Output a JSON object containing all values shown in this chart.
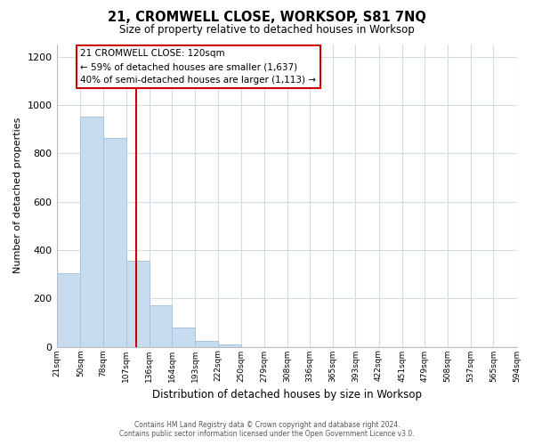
{
  "title": "21, CROMWELL CLOSE, WORKSOP, S81 7NQ",
  "subtitle": "Size of property relative to detached houses in Worksop",
  "xlabel": "Distribution of detached houses by size in Worksop",
  "ylabel": "Number of detached properties",
  "bar_color": "#c8dcf0",
  "bar_edge_color": "#a8c4de",
  "background_color": "#ffffff",
  "grid_color": "#d0dce8",
  "annotation_box_color": "#ffffff",
  "annotation_box_edge": "#cc0000",
  "vline_color": "#cc0000",
  "vline_x": 120,
  "annotation_title": "21 CROMWELL CLOSE: 120sqm",
  "annotation_line1": "← 59% of detached houses are smaller (1,637)",
  "annotation_line2": "40% of semi-detached houses are larger (1,113) →",
  "bins": [
    21,
    50,
    78,
    107,
    136,
    164,
    193,
    222,
    250,
    279,
    308,
    336,
    365,
    393,
    422,
    451,
    479,
    508,
    537,
    565,
    594
  ],
  "counts": [
    305,
    950,
    865,
    355,
    170,
    80,
    25,
    10,
    0,
    0,
    0,
    0,
    0,
    0,
    0,
    0,
    0,
    0,
    0,
    0
  ],
  "ylim": [
    0,
    1250
  ],
  "yticks": [
    0,
    200,
    400,
    600,
    800,
    1000,
    1200
  ],
  "footer1": "Contains HM Land Registry data © Crown copyright and database right 2024.",
  "footer2": "Contains public sector information licensed under the Open Government Licence v3.0."
}
